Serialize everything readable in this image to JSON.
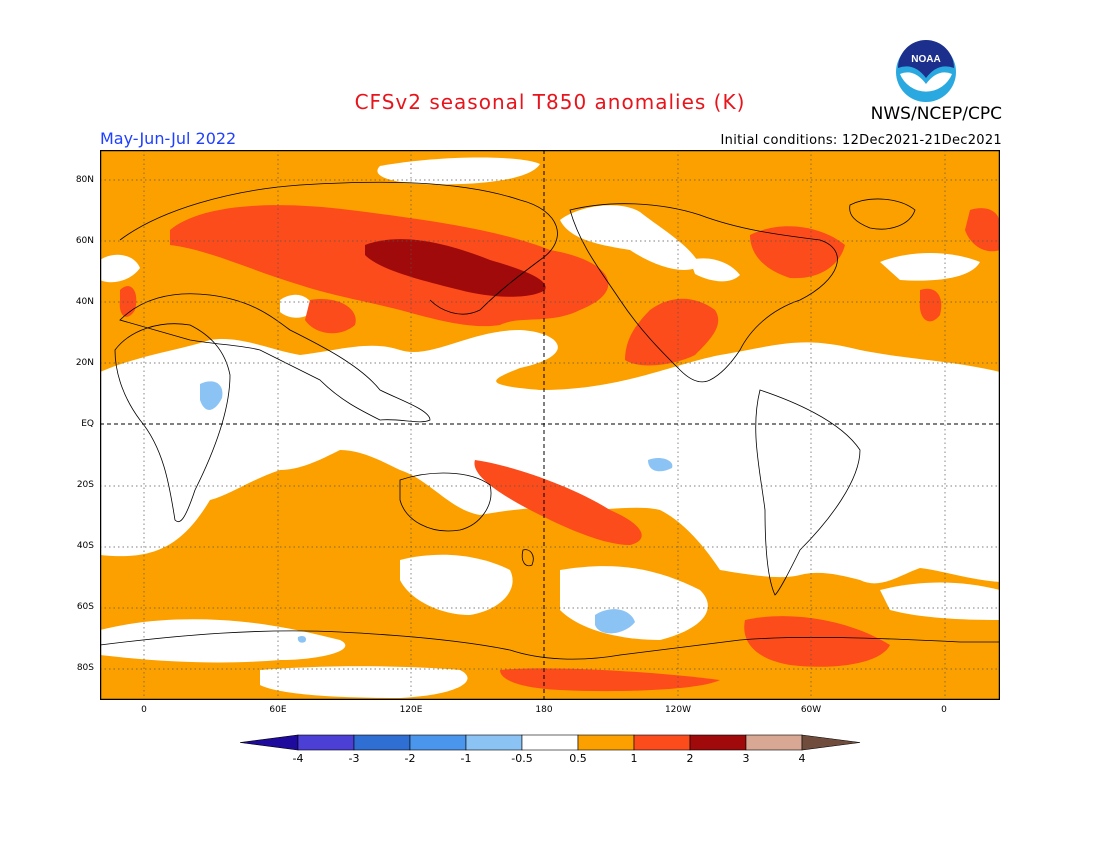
{
  "title": "CFSv2 seasonal T850 anomalies (K)",
  "period": "May-Jun-Jul 2022",
  "agency": "NWS/NCEP/CPC",
  "initial_conditions": "Initial conditions: 12Dec2021-21Dec2021",
  "logo": {
    "name": "noaa-logo",
    "text": "NOAA"
  },
  "lat_labels": [
    "80N",
    "60N",
    "40N",
    "20N",
    "EQ",
    "20S",
    "40S",
    "60S",
    "80S"
  ],
  "lon_labels": [
    "0",
    "60E",
    "120E",
    "180",
    "120W",
    "60W",
    "0"
  ],
  "colorbar": {
    "labels": [
      "-4",
      "-3",
      "-2",
      "-1",
      "-0.5",
      "0.5",
      "1",
      "2",
      "3",
      "4"
    ],
    "colors": [
      "#1e0a9c",
      "#4b3fd6",
      "#2f6ed2",
      "#4a96ec",
      "#8cc3f5",
      "#ffffff",
      "#fca000",
      "#fc4c1c",
      "#a00a0a",
      "#d8a894",
      "#704c3c"
    ]
  },
  "colors": {
    "base": "#fca000",
    "neutral": "#ffffff",
    "warm": "#fc4c1c",
    "hot": "#a00a0a",
    "cool": "#8cc3f5",
    "title": "#e8141c",
    "period": "#2040ff"
  }
}
